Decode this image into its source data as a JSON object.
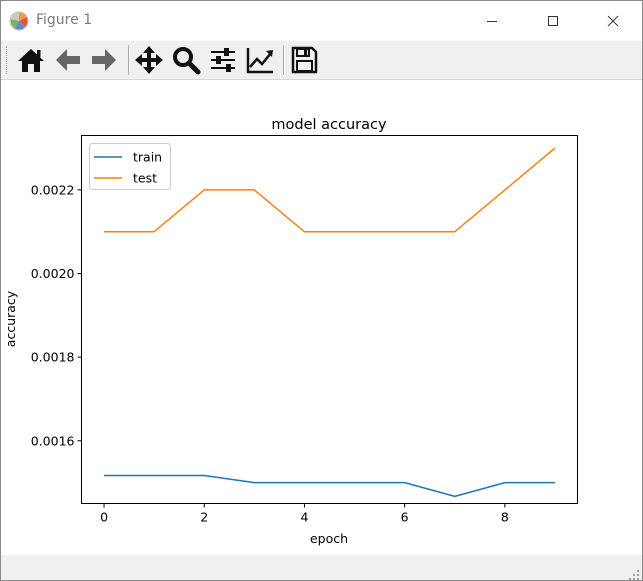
{
  "window": {
    "title": "Figure 1",
    "icons": {
      "app": "matplotlib-logo-icon",
      "minimize": "minimize-icon",
      "maximize": "maximize-icon",
      "close": "close-icon"
    }
  },
  "toolbar": {
    "tools": [
      {
        "name": "home-button",
        "icon": "home-icon"
      },
      {
        "name": "back-button",
        "icon": "arrow-left-icon"
      },
      {
        "name": "forward-button",
        "icon": "arrow-right-icon"
      },
      {
        "name": "pan-button",
        "icon": "move-icon"
      },
      {
        "name": "zoom-button",
        "icon": "magnifier-icon"
      },
      {
        "name": "subplots-button",
        "icon": "sliders-icon"
      },
      {
        "name": "edit-axes-button",
        "icon": "chart-line-icon"
      },
      {
        "name": "save-button",
        "icon": "floppy-disk-icon"
      }
    ]
  },
  "chart_data": {
    "type": "line",
    "title": "model accuracy",
    "xlabel": "epoch",
    "ylabel": "accuracy",
    "xlim": [
      -0.45,
      9.45
    ],
    "ylim": [
      0.00145,
      0.00233
    ],
    "xticks": [
      0,
      2,
      4,
      6,
      8
    ],
    "xtick_labels": [
      "0",
      "2",
      "4",
      "6",
      "8"
    ],
    "yticks": [
      0.0016,
      0.0018,
      0.002,
      0.0022
    ],
    "ytick_labels": [
      "0.0016",
      "0.0018",
      "0.0020",
      "0.0022"
    ],
    "grid": false,
    "legend_position": "upper-left",
    "x": [
      0,
      1,
      2,
      3,
      4,
      5,
      6,
      7,
      8,
      9
    ],
    "series": [
      {
        "name": "train",
        "color": "#1f77b4",
        "values": [
          0.001517,
          0.001517,
          0.001517,
          0.0015,
          0.0015,
          0.0015,
          0.0015,
          0.001467,
          0.0015,
          0.0015
        ]
      },
      {
        "name": "test",
        "color": "#ff7f0e",
        "values": [
          0.0021,
          0.0021,
          0.0022,
          0.0022,
          0.0021,
          0.0021,
          0.0021,
          0.0021,
          0.0022,
          0.0023
        ]
      }
    ]
  }
}
